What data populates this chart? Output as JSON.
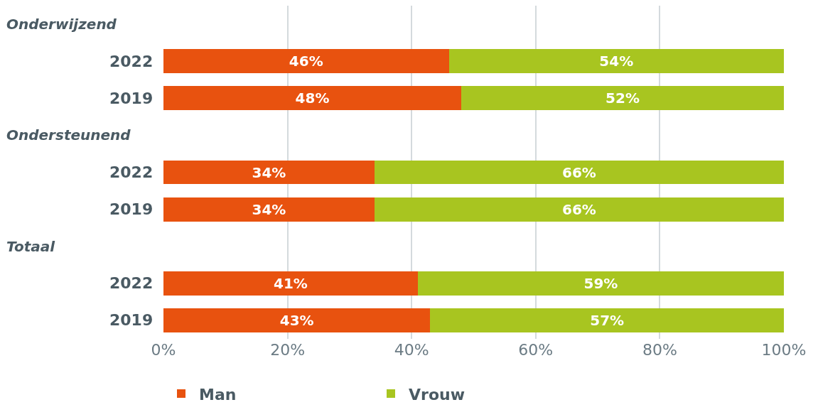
{
  "chart_data": {
    "type": "bar",
    "orientation": "horizontal",
    "stacked": true,
    "categories": [
      "Onderwijzend",
      "2022",
      "2019",
      "Ondersteunend",
      "2022",
      "2019",
      "Totaal",
      "2022",
      "2019"
    ],
    "series": [
      {
        "name": "Man",
        "color": "#e8520f",
        "values": [
          null,
          46,
          48,
          null,
          34,
          34,
          null,
          41,
          43
        ],
        "value_labels": [
          null,
          "46%",
          "48%",
          null,
          "34%",
          "34%",
          null,
          "41%",
          "43%"
        ]
      },
      {
        "name": "Vrouw",
        "color": "#a8c520",
        "values": [
          null,
          54,
          52,
          null,
          66,
          66,
          null,
          59,
          57
        ],
        "value_labels": [
          null,
          "54%",
          "52%",
          null,
          "66%",
          "66%",
          null,
          "59%",
          "57%"
        ]
      }
    ],
    "xlim": [
      0,
      100
    ],
    "xticks": [
      {
        "value": 0,
        "label": "0%"
      },
      {
        "value": 20,
        "label": "20%"
      },
      {
        "value": 40,
        "label": "40%"
      },
      {
        "value": 60,
        "label": "60%"
      },
      {
        "value": 80,
        "label": "80%"
      },
      {
        "value": 100,
        "label": "100%"
      }
    ],
    "grid": "x",
    "legend": "bottom left"
  }
}
